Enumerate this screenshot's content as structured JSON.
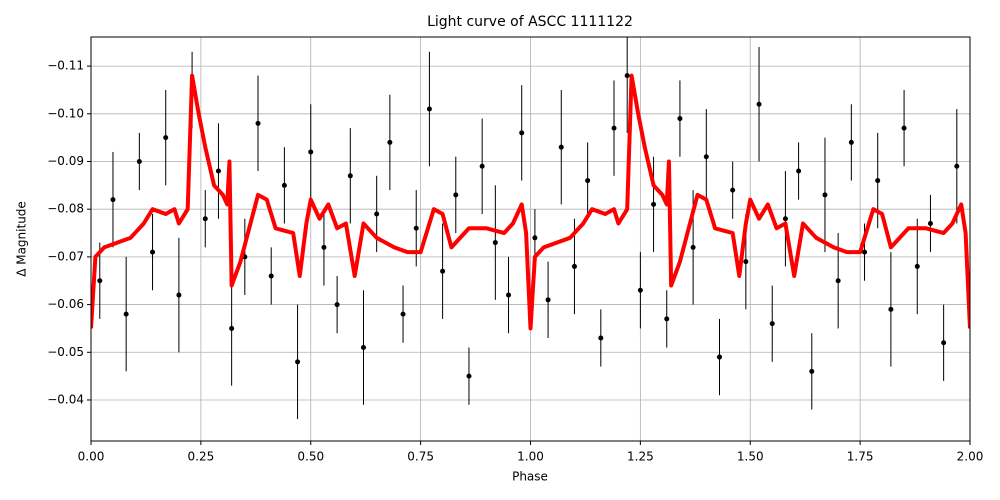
{
  "chart_data": {
    "type": "scatter",
    "title": "Light curve of ASCC 1111122",
    "x_label": "Phase",
    "y_label": "Δ Magnitude",
    "xlim": [
      0,
      2
    ],
    "ylim": [
      -0.0314,
      -0.1161
    ],
    "grid": true,
    "xticks": [
      {
        "value": 0,
        "label": "0.00"
      },
      {
        "value": 0.25,
        "label": "0.25"
      },
      {
        "value": 0.5,
        "label": "0.50"
      },
      {
        "value": 0.75,
        "label": "0.75"
      },
      {
        "value": 1,
        "label": "1.00"
      },
      {
        "value": 1.25,
        "label": "1.25"
      },
      {
        "value": 1.5,
        "label": "1.50"
      },
      {
        "value": 1.75,
        "label": "1.75"
      },
      {
        "value": 2,
        "label": "2.00"
      }
    ],
    "yticks": [
      {
        "value": -0.11,
        "label": "−0.11"
      },
      {
        "value": -0.1,
        "label": "−0.10"
      },
      {
        "value": -0.09,
        "label": "−0.09"
      },
      {
        "value": -0.08,
        "label": "−0.08"
      },
      {
        "value": -0.07,
        "label": "−0.07"
      },
      {
        "value": -0.06,
        "label": "−0.06"
      },
      {
        "value": -0.05,
        "label": "−0.05"
      },
      {
        "value": -0.04,
        "label": "−0.04"
      }
    ],
    "series": [
      {
        "type": "errorbar",
        "color": "#000000",
        "x": [
          0.02,
          0.05,
          0.08,
          0.11,
          0.14,
          0.17,
          0.2,
          0.23,
          0.26,
          0.29,
          0.32,
          0.35,
          0.38,
          0.41,
          0.44,
          0.47,
          0.5,
          0.53,
          0.56,
          0.59,
          0.62,
          0.65,
          0.68,
          0.71,
          0.74,
          0.77,
          0.8,
          0.83,
          0.86,
          0.89,
          0.92,
          0.95,
          0.98,
          1.01,
          1.04,
          1.07,
          1.1,
          1.13,
          1.16,
          1.19,
          1.22,
          1.25,
          1.28,
          1.31,
          1.34,
          1.37,
          1.4,
          1.43,
          1.46,
          1.49,
          1.52,
          1.55,
          1.58,
          1.61,
          1.64,
          1.67,
          1.7,
          1.73,
          1.76,
          1.79,
          1.82,
          1.85,
          1.88,
          1.91,
          1.94,
          1.97
        ],
        "values": [
          -0.065,
          -0.082,
          -0.058,
          -0.09,
          -0.071,
          -0.095,
          -0.062,
          -0.105,
          -0.078,
          -0.088,
          -0.055,
          -0.07,
          -0.098,
          -0.066,
          -0.085,
          -0.048,
          -0.092,
          -0.072,
          -0.06,
          -0.087,
          -0.051,
          -0.079,
          -0.094,
          -0.058,
          -0.076,
          -0.101,
          -0.067,
          -0.083,
          -0.045,
          -0.089,
          -0.073,
          -0.062,
          -0.096,
          -0.074,
          -0.061,
          -0.093,
          -0.068,
          -0.086,
          -0.053,
          -0.097,
          -0.108,
          -0.063,
          -0.081,
          -0.057,
          -0.099,
          -0.072,
          -0.091,
          -0.049,
          -0.084,
          -0.069,
          -0.102,
          -0.056,
          -0.078,
          -0.088,
          -0.046,
          -0.083,
          -0.065,
          -0.094,
          -0.071,
          -0.086,
          -0.059,
          -0.097,
          -0.068,
          -0.077,
          -0.052,
          -0.089
        ],
        "errors": [
          0.008,
          0.01,
          0.012,
          0.006,
          0.008,
          0.01,
          0.012,
          0.008,
          0.006,
          0.01,
          0.012,
          0.008,
          0.01,
          0.006,
          0.008,
          0.012,
          0.01,
          0.008,
          0.006,
          0.01,
          0.012,
          0.008,
          0.01,
          0.006,
          0.008,
          0.012,
          0.01,
          0.008,
          0.006,
          0.01,
          0.012,
          0.008,
          0.01,
          0.006,
          0.008,
          0.012,
          0.01,
          0.008,
          0.006,
          0.01,
          0.012,
          0.008,
          0.01,
          0.006,
          0.008,
          0.012,
          0.01,
          0.008,
          0.006,
          0.01,
          0.012,
          0.008,
          0.01,
          0.006,
          0.008,
          0.012,
          0.01,
          0.008,
          0.006,
          0.01,
          0.012,
          0.008,
          0.01,
          0.006,
          0.008,
          0.012
        ]
      },
      {
        "type": "line",
        "color": "#ff0000",
        "x": [
          0,
          0.01,
          0.03,
          0.06,
          0.09,
          0.12,
          0.14,
          0.17,
          0.19,
          0.2,
          0.22,
          0.23,
          0.245,
          0.26,
          0.28,
          0.3,
          0.31,
          0.315,
          0.32,
          0.34,
          0.36,
          0.38,
          0.4,
          0.42,
          0.46,
          0.475,
          0.49,
          0.5,
          0.52,
          0.54,
          0.56,
          0.58,
          0.6,
          0.62,
          0.65,
          0.69,
          0.72,
          0.75,
          0.78,
          0.8,
          0.82,
          0.86,
          0.9,
          0.94,
          0.96,
          0.98,
          0.99,
          1,
          1.01,
          1.03,
          1.06,
          1.09,
          1.12,
          1.14,
          1.17,
          1.19,
          1.2,
          1.22,
          1.23,
          1.245,
          1.26,
          1.28,
          1.3,
          1.31,
          1.315,
          1.32,
          1.34,
          1.36,
          1.38,
          1.4,
          1.42,
          1.46,
          1.475,
          1.49,
          1.5,
          1.52,
          1.54,
          1.56,
          1.58,
          1.6,
          1.62,
          1.65,
          1.69,
          1.72,
          1.75,
          1.78,
          1.8,
          1.82,
          1.86,
          1.9,
          1.94,
          1.96,
          1.98,
          1.99,
          2
        ],
        "values": [
          -0.055,
          -0.07,
          -0.072,
          -0.073,
          -0.074,
          -0.077,
          -0.08,
          -0.079,
          -0.08,
          -0.077,
          -0.08,
          -0.108,
          -0.1,
          -0.093,
          -0.085,
          -0.083,
          -0.081,
          -0.09,
          -0.064,
          -0.069,
          -0.076,
          -0.083,
          -0.082,
          -0.076,
          -0.075,
          -0.066,
          -0.077,
          -0.082,
          -0.078,
          -0.081,
          -0.076,
          -0.077,
          -0.066,
          -0.077,
          -0.074,
          -0.072,
          -0.071,
          -0.071,
          -0.08,
          -0.079,
          -0.072,
          -0.076,
          -0.076,
          -0.075,
          -0.077,
          -0.081,
          -0.075,
          -0.055,
          -0.07,
          -0.072,
          -0.073,
          -0.074,
          -0.077,
          -0.08,
          -0.079,
          -0.08,
          -0.077,
          -0.08,
          -0.108,
          -0.1,
          -0.093,
          -0.085,
          -0.083,
          -0.081,
          -0.09,
          -0.064,
          -0.069,
          -0.076,
          -0.083,
          -0.082,
          -0.076,
          -0.075,
          -0.066,
          -0.077,
          -0.082,
          -0.078,
          -0.081,
          -0.076,
          -0.077,
          -0.066,
          -0.077,
          -0.074,
          -0.072,
          -0.071,
          -0.071,
          -0.08,
          -0.079,
          -0.072,
          -0.076,
          -0.076,
          -0.075,
          -0.077,
          -0.081,
          -0.075,
          -0.055
        ]
      }
    ]
  }
}
